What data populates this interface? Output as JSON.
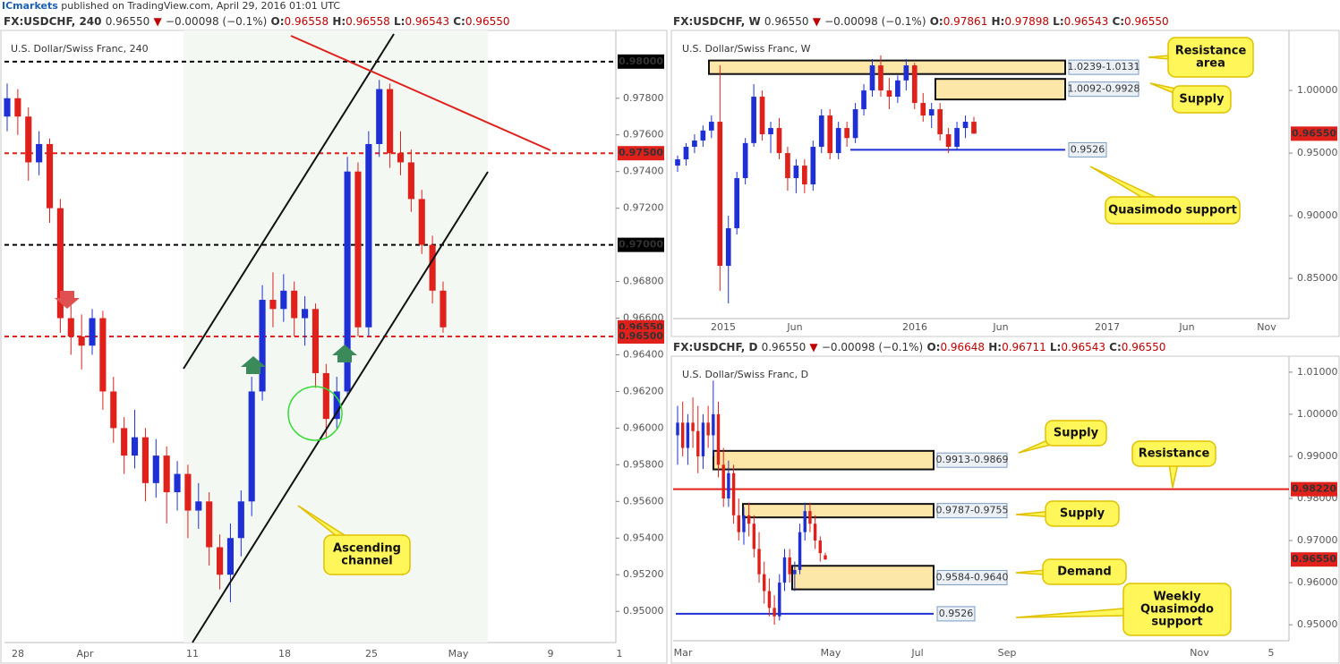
{
  "header": {
    "brand": "ICmarkets",
    "text": "published on TradingView.com, April 29, 2016 01:01 UTC"
  },
  "chart_data": [
    {
      "type": "candlestick",
      "symbol": "FX:USDCHF, 240",
      "price": "0.96550",
      "direction": "▼",
      "change": "−0.00098 (−0.1%)",
      "ohlc": [
        [
          "O:",
          "0.96558"
        ],
        [
          "H:",
          "0.96558"
        ],
        [
          "L:",
          "0.96543"
        ],
        [
          "C:",
          "0.96550"
        ]
      ],
      "title": "U.S. Dollar/Swiss Franc, 240",
      "up_color": "#1f2fd6",
      "down_color": "#e0201b",
      "candles": [
        [
          0.977,
          0.9788,
          0.9762,
          0.978
        ],
        [
          0.978,
          0.9785,
          0.976,
          0.977
        ],
        [
          0.977,
          0.9775,
          0.9735,
          0.9745
        ],
        [
          0.9745,
          0.9762,
          0.9738,
          0.9755
        ],
        [
          0.9755,
          0.9758,
          0.9712,
          0.972
        ],
        [
          0.972,
          0.9725,
          0.9652,
          0.966
        ],
        [
          0.966,
          0.9668,
          0.964,
          0.965
        ],
        [
          0.965,
          0.9662,
          0.9632,
          0.9645
        ],
        [
          0.9645,
          0.9665,
          0.964,
          0.966
        ],
        [
          0.966,
          0.9664,
          0.961,
          0.962
        ],
        [
          0.962,
          0.9628,
          0.9592,
          0.96
        ],
        [
          0.96,
          0.9606,
          0.9575,
          0.9585
        ],
        [
          0.9585,
          0.961,
          0.9578,
          0.9595
        ],
        [
          0.9595,
          0.96,
          0.956,
          0.957
        ],
        [
          0.957,
          0.9594,
          0.9562,
          0.9585
        ],
        [
          0.9585,
          0.959,
          0.9548,
          0.9565
        ],
        [
          0.9565,
          0.9582,
          0.9555,
          0.9575
        ],
        [
          0.9575,
          0.958,
          0.954,
          0.9555
        ],
        [
          0.9555,
          0.957,
          0.9545,
          0.956
        ],
        [
          0.956,
          0.9565,
          0.9525,
          0.9535
        ],
        [
          0.9535,
          0.9542,
          0.9512,
          0.952
        ],
        [
          0.952,
          0.9548,
          0.9505,
          0.954
        ],
        [
          0.954,
          0.9566,
          0.953,
          0.956
        ],
        [
          0.956,
          0.9628,
          0.9552,
          0.962
        ],
        [
          0.962,
          0.9678,
          0.9615,
          0.967
        ],
        [
          0.967,
          0.9685,
          0.9655,
          0.9665
        ],
        [
          0.9665,
          0.9684,
          0.9658,
          0.9675
        ],
        [
          0.9675,
          0.968,
          0.965,
          0.966
        ],
        [
          0.966,
          0.9672,
          0.9645,
          0.9665
        ],
        [
          0.9665,
          0.9668,
          0.9622,
          0.963
        ],
        [
          0.963,
          0.9635,
          0.9595,
          0.9605
        ],
        [
          0.9605,
          0.9628,
          0.96,
          0.962
        ],
        [
          0.962,
          0.9748,
          0.9618,
          0.974
        ],
        [
          0.974,
          0.9745,
          0.965,
          0.9655
        ],
        [
          0.9655,
          0.9762,
          0.965,
          0.9755
        ],
        [
          0.9755,
          0.979,
          0.9748,
          0.9785
        ],
        [
          0.9785,
          0.9788,
          0.9742,
          0.975
        ],
        [
          0.975,
          0.9762,
          0.9738,
          0.9745
        ],
        [
          0.9745,
          0.9752,
          0.9718,
          0.9725
        ],
        [
          0.9725,
          0.973,
          0.9695,
          0.97
        ],
        [
          0.97,
          0.9705,
          0.9668,
          0.9675
        ],
        [
          0.9675,
          0.968,
          0.9652,
          0.9655
        ]
      ],
      "ylim": [
        0.9483,
        0.9817
      ],
      "yticks": [
        {
          "value": 0.978,
          "label": "0.97800"
        },
        {
          "value": 0.976,
          "label": "0.97600"
        },
        {
          "value": 0.974,
          "label": "0.97400"
        },
        {
          "value": 0.972,
          "label": "0.97200"
        },
        {
          "value": 0.968,
          "label": "0.96800"
        },
        {
          "value": 0.966,
          "label": "0.96600"
        },
        {
          "value": 0.964,
          "label": "0.96400"
        },
        {
          "value": 0.962,
          "label": "0.96200"
        },
        {
          "value": 0.96,
          "label": "0.96000"
        },
        {
          "value": 0.958,
          "label": "0.95800"
        },
        {
          "value": 0.956,
          "label": "0.95600"
        },
        {
          "value": 0.954,
          "label": "0.95400"
        },
        {
          "value": 0.952,
          "label": "0.95200"
        },
        {
          "value": 0.95,
          "label": "0.95000"
        }
      ],
      "levels": [
        {
          "value": 0.98,
          "label": "0.98000",
          "color": "#000000",
          "line": "dashed"
        },
        {
          "value": 0.975,
          "label": "0.97500",
          "color": "#e0201b",
          "line": "dashed"
        },
        {
          "value": 0.97,
          "label": "0.97000",
          "color": "#000000",
          "line": "dashed"
        },
        {
          "value": 0.9655,
          "label": "0.96550",
          "color": "#e0201b"
        },
        {
          "value": 0.965,
          "label": "0.96500",
          "color": "#e0201b",
          "line": "dashed"
        }
      ],
      "zones": [],
      "lines": [],
      "callouts": [
        [
          "Ascending",
          "channel"
        ]
      ],
      "xticks": [
        "28",
        "Apr",
        "11",
        "18",
        "25",
        "May",
        "9",
        "1"
      ]
    },
    {
      "type": "candlestick",
      "symbol": "FX:USDCHF, W",
      "price": "0.96550",
      "direction": "▼",
      "change": "−0.00098 (−0.1%)",
      "ohlc": [
        [
          "O:",
          "0.97861"
        ],
        [
          "H:",
          "0.97898"
        ],
        [
          "L:",
          "0.96543"
        ],
        [
          "C:",
          "0.96550"
        ]
      ],
      "title": "U.S. Dollar/Swiss Franc, W",
      "up_color": "#1f2fd6",
      "down_color": "#e0201b",
      "candles": [
        [
          0.94,
          0.948,
          0.935,
          0.945
        ],
        [
          0.945,
          0.958,
          0.94,
          0.955
        ],
        [
          0.955,
          0.965,
          0.95,
          0.96
        ],
        [
          0.96,
          0.972,
          0.955,
          0.968
        ],
        [
          0.968,
          0.98,
          0.962,
          0.975
        ],
        [
          0.975,
          1.02,
          0.84,
          0.86
        ],
        [
          0.86,
          0.9,
          0.83,
          0.89
        ],
        [
          0.89,
          0.935,
          0.885,
          0.93
        ],
        [
          0.93,
          0.962,
          0.925,
          0.958
        ],
        [
          0.958,
          1.005,
          0.955,
          0.995
        ],
        [
          0.995,
          1.0,
          0.96,
          0.965
        ],
        [
          0.965,
          0.975,
          0.95,
          0.97
        ],
        [
          0.97,
          0.978,
          0.945,
          0.95
        ],
        [
          0.95,
          0.955,
          0.92,
          0.93
        ],
        [
          0.93,
          0.945,
          0.918,
          0.94
        ],
        [
          0.94,
          0.945,
          0.918,
          0.925
        ],
        [
          0.925,
          0.96,
          0.92,
          0.955
        ],
        [
          0.955,
          0.985,
          0.95,
          0.98
        ],
        [
          0.98,
          0.985,
          0.945,
          0.95
        ],
        [
          0.95,
          0.975,
          0.945,
          0.97
        ],
        [
          0.97,
          0.975,
          0.955,
          0.962
        ],
        [
          0.962,
          0.99,
          0.958,
          0.985
        ],
        [
          0.985,
          1.005,
          0.98,
          1.0
        ],
        [
          1.0,
          1.025,
          0.995,
          1.02
        ],
        [
          1.02,
          1.028,
          0.995,
          1.0
        ],
        [
          1.0,
          1.01,
          0.985,
          0.995
        ],
        [
          0.995,
          1.012,
          0.99,
          1.008
        ],
        [
          1.008,
          1.025,
          1.0,
          1.02
        ],
        [
          1.02,
          1.022,
          0.985,
          0.99
        ],
        [
          0.99,
          0.998,
          0.975,
          0.98
        ],
        [
          0.98,
          0.99,
          0.97,
          0.985
        ],
        [
          0.985,
          0.99,
          0.96,
          0.965
        ],
        [
          0.965,
          0.97,
          0.95,
          0.955
        ],
        [
          0.955,
          0.975,
          0.952,
          0.97
        ],
        [
          0.97,
          0.98,
          0.962,
          0.975
        ],
        [
          0.975,
          0.979,
          0.9654,
          0.9655
        ]
      ],
      "ylim": [
        0.8179,
        1.0479
      ],
      "yticks": [
        {
          "value": 1.0,
          "label": "1.00000"
        },
        {
          "value": 0.95,
          "label": "0.95000"
        },
        {
          "value": 0.9,
          "label": "0.90000"
        },
        {
          "value": 0.85,
          "label": "0.85000"
        }
      ],
      "levels": [
        {
          "value": 0.9655,
          "label": "0.96550",
          "color": "#e0201b"
        }
      ],
      "zones": [
        {
          "label": "1.0239-1.0131",
          "top": 1.0239,
          "bottom": 1.0131
        },
        {
          "label": "1.0092-0.9928",
          "top": 1.0092,
          "bottom": 0.9928
        }
      ],
      "lines": [
        {
          "value": 0.9526,
          "label": "0.9526",
          "color": "#1f2fd6"
        }
      ],
      "callouts": [
        [
          "Resistance",
          "area"
        ],
        [
          "Supply"
        ],
        [
          "Quasimodo support"
        ]
      ],
      "xticks": [
        "2015",
        "Jun",
        "2016",
        "Jun",
        "2017",
        "Jun",
        "Nov"
      ]
    },
    {
      "type": "candlestick",
      "symbol": "FX:USDCHF, D",
      "price": "0.96550",
      "direction": "▼",
      "change": "−0.00098 (−0.1%)",
      "ohlc": [
        [
          "O:",
          "0.96648"
        ],
        [
          "H:",
          "0.96711"
        ],
        [
          "L:",
          "0.96543"
        ],
        [
          "C:",
          "0.96550"
        ]
      ],
      "title": "U.S. Dollar/Swiss Franc, D",
      "up_color": "#1f2fd6",
      "down_color": "#e0201b",
      "candles": [
        [
          0.995,
          1.002,
          0.988,
          0.998
        ],
        [
          0.998,
          1.003,
          0.99,
          0.992
        ],
        [
          0.992,
          1.0,
          0.988,
          0.998
        ],
        [
          0.998,
          1.004,
          0.992,
          0.996
        ],
        [
          0.996,
          1.002,
          0.986,
          0.99
        ],
        [
          0.99,
          1.0,
          0.987,
          0.998
        ],
        [
          0.998,
          1.002,
          0.992,
          0.995
        ],
        [
          0.995,
          1.008,
          0.99,
          1.0
        ],
        [
          1.0,
          1.003,
          0.985,
          0.988
        ],
        [
          0.988,
          0.992,
          0.978,
          0.98
        ],
        [
          0.98,
          0.989,
          0.978,
          0.986
        ],
        [
          0.986,
          0.988,
          0.974,
          0.976
        ],
        [
          0.976,
          0.98,
          0.97,
          0.972
        ],
        [
          0.972,
          0.978,
          0.969,
          0.976
        ],
        [
          0.976,
          0.979,
          0.971,
          0.974
        ],
        [
          0.974,
          0.976,
          0.966,
          0.968
        ],
        [
          0.968,
          0.972,
          0.96,
          0.962
        ],
        [
          0.962,
          0.965,
          0.955,
          0.958
        ],
        [
          0.958,
          0.961,
          0.952,
          0.954
        ],
        [
          0.954,
          0.957,
          0.95,
          0.952
        ],
        [
          0.952,
          0.962,
          0.951,
          0.96
        ],
        [
          0.96,
          0.968,
          0.958,
          0.966
        ],
        [
          0.966,
          0.968,
          0.96,
          0.962
        ],
        [
          0.962,
          0.965,
          0.958,
          0.963
        ],
        [
          0.963,
          0.974,
          0.962,
          0.972
        ],
        [
          0.972,
          0.979,
          0.97,
          0.977
        ],
        [
          0.977,
          0.979,
          0.972,
          0.974
        ],
        [
          0.974,
          0.976,
          0.968,
          0.97
        ],
        [
          0.97,
          0.971,
          0.965,
          0.967
        ],
        [
          0.9665,
          0.9671,
          0.9654,
          0.9655
        ]
      ],
      "ylim": [
        0.9462,
        1.0138
      ],
      "yticks": [
        {
          "value": 1.01,
          "label": "1.01000"
        },
        {
          "value": 1.0,
          "label": "1.00000"
        },
        {
          "value": 0.99,
          "label": "0.99000"
        },
        {
          "value": 0.98,
          "label": "0.98000"
        },
        {
          "value": 0.97,
          "label": "0.97000"
        },
        {
          "value": 0.96,
          "label": "0.96000"
        },
        {
          "value": 0.95,
          "label": "0.95000"
        }
      ],
      "levels": [
        {
          "value": 0.9822,
          "label": "0.98220",
          "color": "#e0201b",
          "line": "solid"
        },
        {
          "value": 0.9655,
          "label": "0.96550",
          "color": "#e0201b"
        }
      ],
      "zones": [
        {
          "label": "0.9913-0.9869",
          "top": 0.9913,
          "bottom": 0.9869
        },
        {
          "label": "0.9787-0.9755",
          "top": 0.9787,
          "bottom": 0.9755
        },
        {
          "label": "0.9584-0.9640",
          "top": 0.964,
          "bottom": 0.9584
        }
      ],
      "lines": [
        {
          "value": 0.9526,
          "label": "0.9526",
          "color": "#1f2fd6"
        }
      ],
      "callouts": [
        [
          "Supply"
        ],
        [
          "Resistance"
        ],
        [
          "Supply"
        ],
        [
          "Demand"
        ],
        [
          "Weekly",
          "Quasimodo",
          "support"
        ]
      ],
      "xticks": [
        "Mar",
        "May",
        "Jul",
        "Sep",
        "Nov",
        "5"
      ]
    }
  ]
}
